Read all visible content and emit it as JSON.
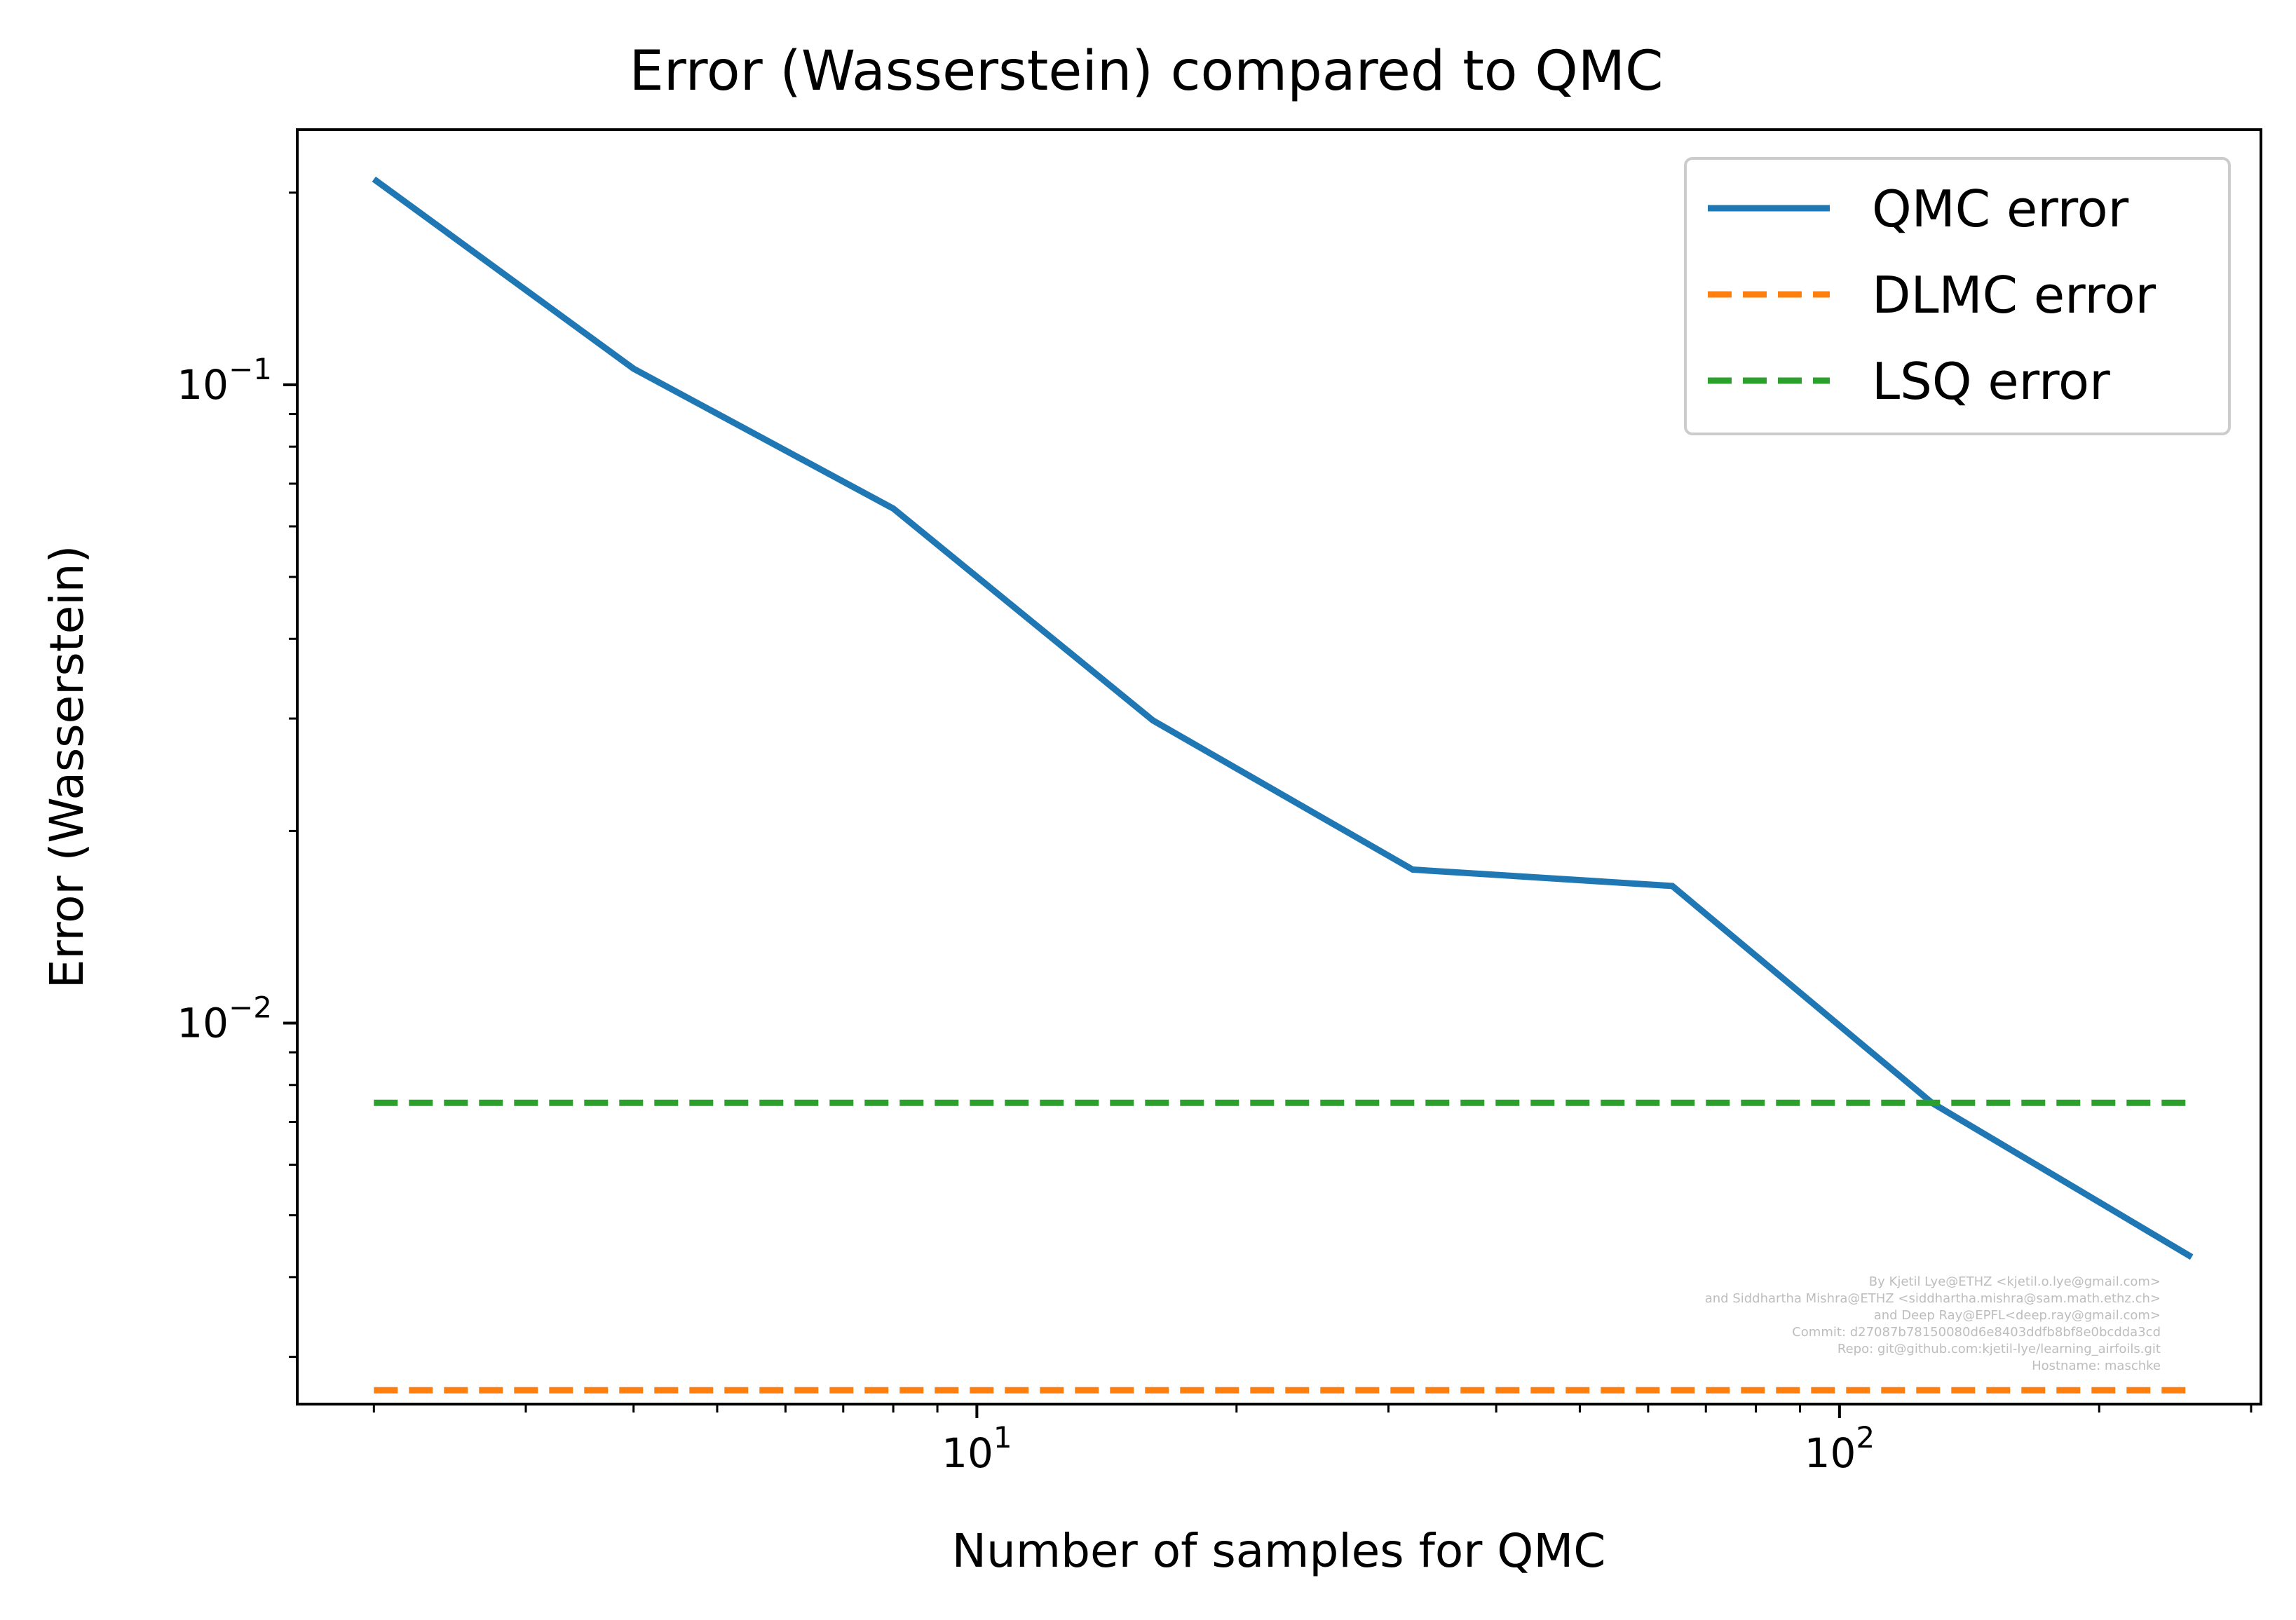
{
  "chart_data": {
    "type": "line",
    "title": "Error (Wasserstein) compared to QMC",
    "xlabel": "Number of samples for QMC",
    "ylabel": "Error (Wasserstein)",
    "xscale": "log",
    "yscale": "log",
    "xlim": [
      1.63,
      308
    ],
    "ylim": [
      0.00253,
      0.251
    ],
    "grid": false,
    "legend_position": "top-right",
    "x_ticks": [
      {
        "value": 10,
        "base": "10",
        "exp": "1"
      },
      {
        "value": 100,
        "base": "10",
        "exp": "2"
      }
    ],
    "y_ticks": [
      {
        "value": 0.1,
        "base": "10",
        "exp": "−1"
      },
      {
        "value": 0.01,
        "base": "10",
        "exp": "−2"
      }
    ],
    "series": [
      {
        "name": "QMC error",
        "color": "#1f77b4",
        "style": "solid",
        "x": [
          2,
          4,
          8,
          16,
          32,
          64,
          128,
          256
        ],
        "y": [
          0.21,
          0.106,
          0.064,
          0.0298,
          0.0174,
          0.0164,
          0.0075,
          0.0043
        ]
      },
      {
        "name": "DLMC error",
        "color": "#ff7f0e",
        "style": "dashed",
        "x": [
          2,
          256
        ],
        "y": [
          0.00266,
          0.00266
        ]
      },
      {
        "name": "LSQ error",
        "color": "#2ca02c",
        "style": "dashed",
        "x": [
          2,
          256
        ],
        "y": [
          0.0075,
          0.0075
        ]
      }
    ],
    "annotation_lines": [
      "By Kjetil Lye@ETHZ <kjetil.o.lye@gmail.com>",
      "and Siddhartha Mishra@ETHZ <siddhartha.mishra@sam.math.ethz.ch>",
      "and Deep Ray@EPFL<deep.ray@gmail.com>",
      "Commit: d27087b78150080d6e8403ddfb8bf8e0bcdda3cd",
      "Repo: git@github.com:kjetil-lye/learning_airfoils.git",
      "Hostname: maschke"
    ]
  }
}
